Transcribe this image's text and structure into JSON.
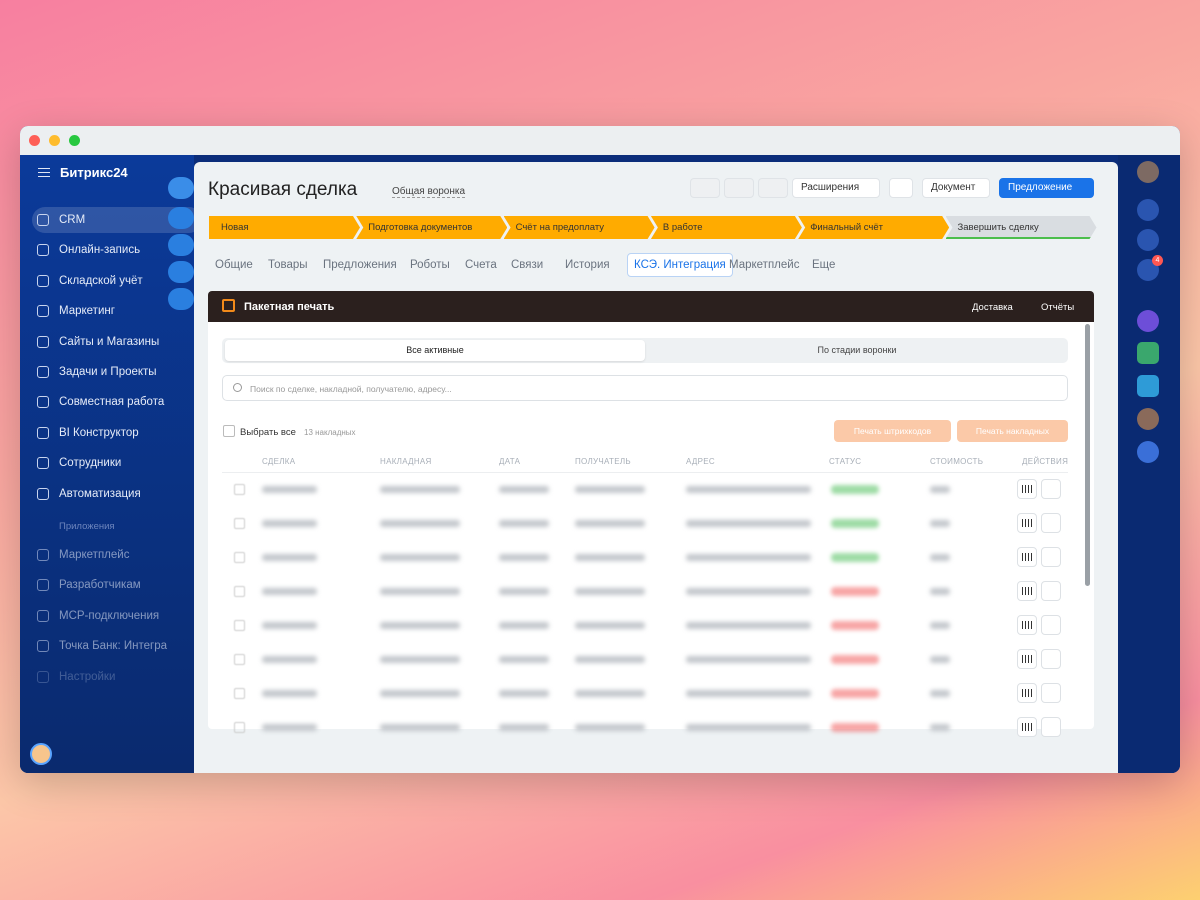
{
  "sidebar": {
    "brand": "Битрикс24",
    "menu": [
      "CRM",
      "Онлайн-запись",
      "Складской учёт",
      "Маркетинг",
      "Сайты и Магазины",
      "Задачи и Проекты",
      "Совместная работа",
      "BI Конструктор",
      "Сотрудники",
      "Автоматизация"
    ],
    "section": "Приложения",
    "apps": [
      "Маркетплейс",
      "Разработчикам",
      "MCP-подключения",
      "Точка Банк: Интегра",
      "Настройки"
    ]
  },
  "right_bar": {
    "badge": "4"
  },
  "deal": {
    "title": "Красивая сделка",
    "funnel": "Общая воронка",
    "buttons": {
      "extensions": "Расширения",
      "document": "Документ",
      "offer": "Предложение"
    },
    "stages": [
      "Новая",
      "Подготовка документов",
      "Счёт на предоплату",
      "В работе",
      "Финальный счёт",
      "Завершить сделку"
    ],
    "tabs": [
      "Общие",
      "Товары",
      "Предложения",
      "Роботы",
      "Счета",
      "Связи",
      "История",
      "КСЭ. Интеграция",
      "Маркетплейс",
      "Еще"
    ]
  },
  "panel": {
    "title": "Пакетная печать",
    "actions": [
      "Доставка",
      "Отчёты"
    ],
    "segments": [
      "Все активные",
      "По стадии воронки"
    ],
    "search_placeholder": "Поиск по сделке, накладной, получателю, адресу...",
    "select_all": "Выбрать все",
    "count": "13 накладных",
    "print_barcodes": "Печать штрихкодов",
    "print_waybills": "Печать накладных",
    "columns": [
      "СДЕЛКА",
      "НАКЛАДНАЯ",
      "ДАТА",
      "ПОЛУЧАТЕЛЬ",
      "АДРЕС",
      "СТАТУС",
      "СТОИМОСТЬ",
      "ДЕЙСТВИЯ"
    ]
  }
}
